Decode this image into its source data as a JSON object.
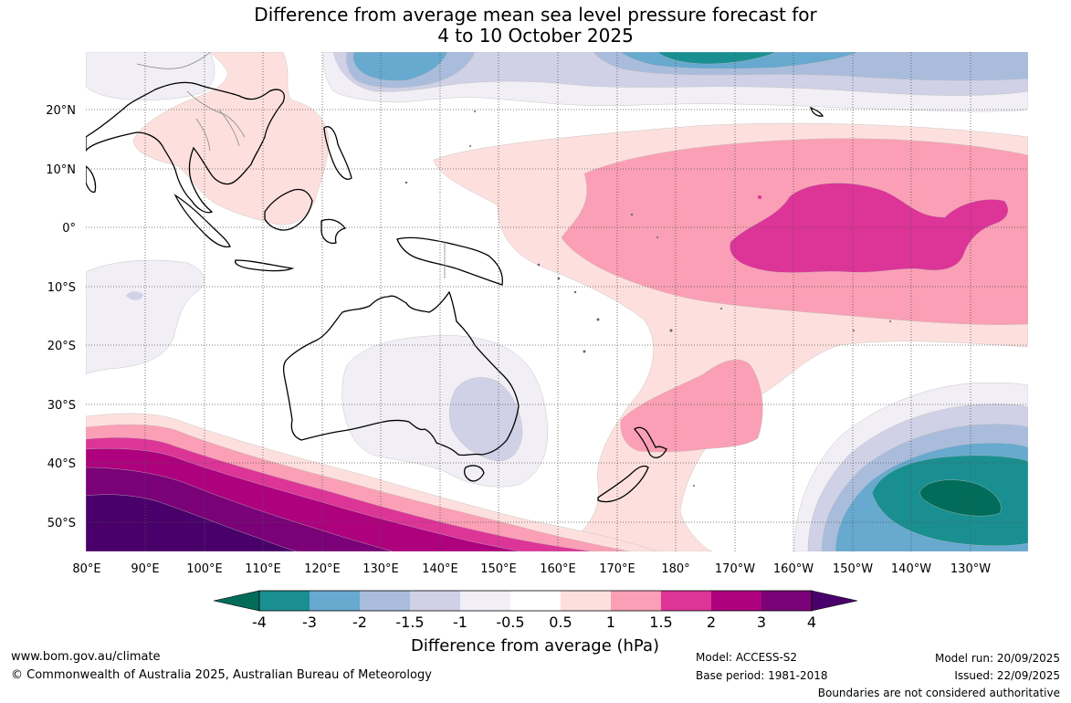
{
  "title": {
    "line1": "Difference from average mean sea level pressure forecast for",
    "line2": "4 to 10 October 2025"
  },
  "map": {
    "lat_labels": [
      "20°N",
      "10°N",
      "0°",
      "10°S",
      "20°S",
      "30°S",
      "40°S",
      "50°S"
    ],
    "lon_labels": [
      "80°E",
      "90°E",
      "100°E",
      "110°E",
      "120°E",
      "130°E",
      "140°E",
      "150°E",
      "160°E",
      "170°E",
      "180°",
      "170°W",
      "160°W",
      "150°W",
      "140°W",
      "130°W"
    ]
  },
  "colorbar": {
    "ticks": [
      "-4",
      "-3",
      "-2",
      "-1.5",
      "-1",
      "-0.5",
      "0.5",
      "1",
      "1.5",
      "2",
      "3",
      "4"
    ],
    "colors": [
      "#1a8f91",
      "#67a9cf",
      "#a9bcdc",
      "#d0d1e6",
      "#f1eef6",
      "#ffffff",
      "#fde0dd",
      "#fa9fb5",
      "#dd3497",
      "#ae017e",
      "#7a0177",
      "#49006a"
    ],
    "under_color": "#016c59",
    "over_color": "#49006a",
    "label": "Difference from average (hPa)"
  },
  "footer": {
    "url": "www.bom.gov.au/climate",
    "copyright": "© Commonwealth of Australia 2025, Australian Bureau of Meteorology",
    "model": "Model: ACCESS-S2",
    "base_period": "Base period: 1981-2018",
    "model_run": "Model run: 20/09/2025",
    "issued": "Issued: 22/09/2025",
    "disclaimer": "Boundaries are not considered authoritative"
  }
}
